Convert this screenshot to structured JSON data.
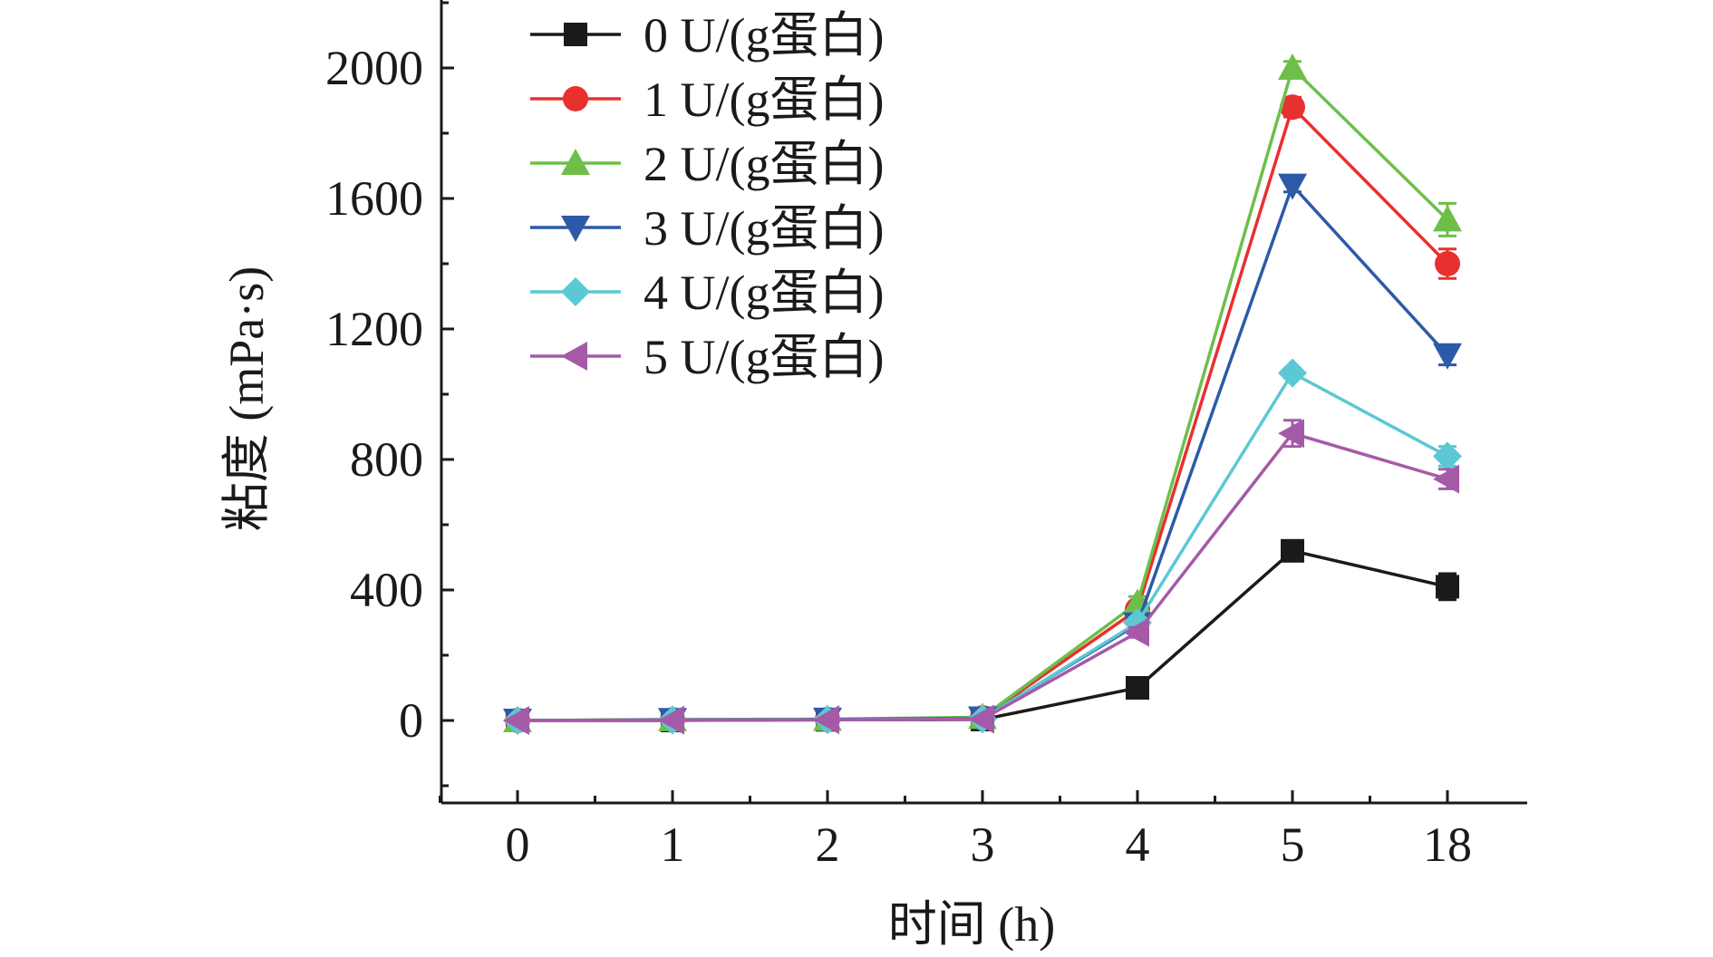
{
  "chart_data": {
    "type": "line",
    "title": "",
    "xlabel": "时间 (h)",
    "ylabel": "粘度 (mPa·s)",
    "categories": [
      "0",
      "1",
      "2",
      "3",
      "4",
      "5",
      "18"
    ],
    "ylim": [
      -250,
      2200
    ],
    "yticks": [
      0,
      400,
      800,
      1200,
      1600,
      2000
    ],
    "legend_position": "top-left",
    "series": [
      {
        "name": "0 U/(g蛋白)",
        "color": "#1a1a1a",
        "marker": "square",
        "values": [
          0,
          0,
          2,
          3,
          100,
          520,
          410
        ],
        "errors": [
          0,
          0,
          0,
          0,
          20,
          15,
          40
        ]
      },
      {
        "name": "1 U/(g蛋白)",
        "color": "#e8302f",
        "marker": "circle",
        "values": [
          0,
          2,
          3,
          8,
          340,
          1880,
          1400
        ],
        "errors": [
          0,
          0,
          0,
          0,
          15,
          30,
          45
        ]
      },
      {
        "name": "2 U/(g蛋白)",
        "color": "#6dbf49",
        "marker": "triangle-up",
        "values": [
          0,
          3,
          4,
          10,
          360,
          2000,
          1535
        ],
        "errors": [
          0,
          0,
          0,
          0,
          20,
          20,
          50
        ]
      },
      {
        "name": "3 U/(g蛋白)",
        "color": "#2c5aa8",
        "marker": "triangle-down",
        "values": [
          0,
          2,
          3,
          7,
          295,
          1640,
          1120
        ],
        "errors": [
          0,
          0,
          0,
          0,
          15,
          20,
          30
        ]
      },
      {
        "name": "4 U/(g蛋白)",
        "color": "#5bc8d4",
        "marker": "diamond",
        "values": [
          0,
          1,
          2,
          5,
          300,
          1065,
          810
        ],
        "errors": [
          0,
          0,
          0,
          0,
          15,
          15,
          30
        ]
      },
      {
        "name": "5 U/(g蛋白)",
        "color": "#a55aa8",
        "marker": "triangle-left",
        "values": [
          0,
          1,
          2,
          4,
          270,
          880,
          740
        ],
        "errors": [
          0,
          0,
          0,
          0,
          15,
          40,
          30
        ]
      }
    ]
  }
}
